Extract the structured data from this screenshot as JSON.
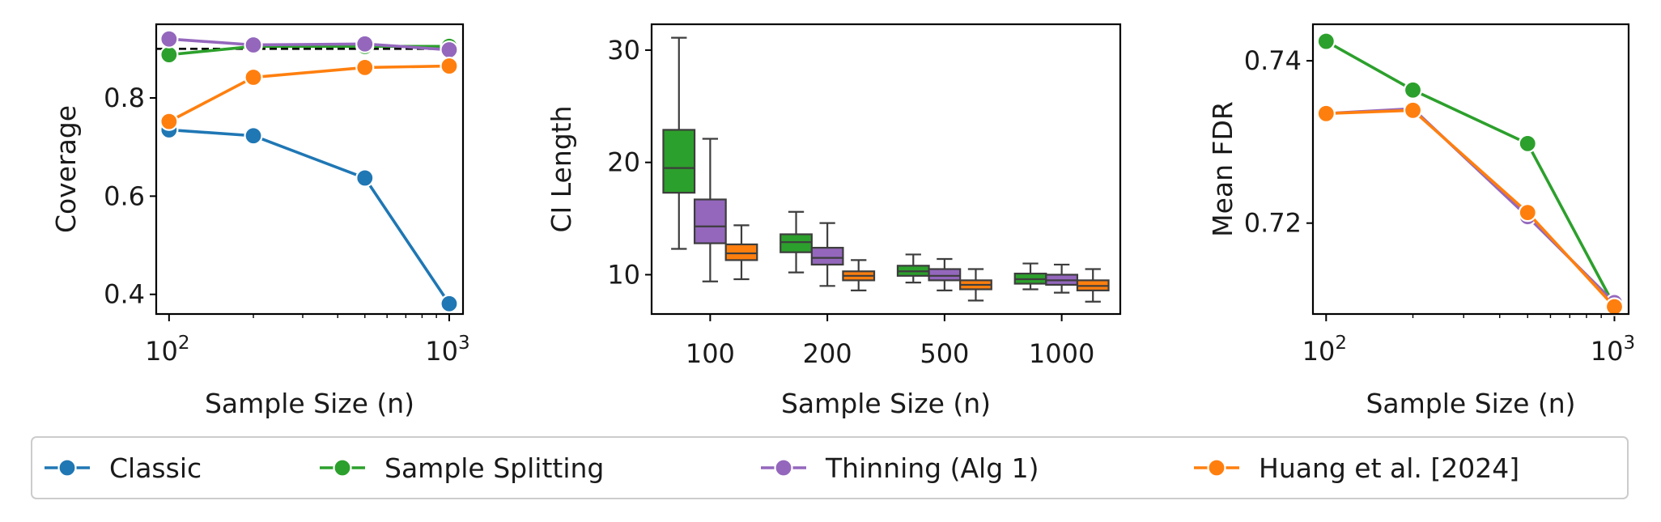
{
  "figure_title": "",
  "legend": {
    "placement": "bottom",
    "entries": [
      {
        "label": "Classic",
        "color": "#1f77b4"
      },
      {
        "label": "Sample Splitting",
        "color": "#2ca02c"
      },
      {
        "label": "Thinning (Alg 1)",
        "color": "#9467bd"
      },
      {
        "label": "Huang et al. [2024]",
        "color": "#ff7f0e"
      }
    ]
  },
  "chart_data": [
    {
      "type": "line",
      "title": "",
      "xlabel": "Sample Size (n)",
      "ylabel": "Coverage",
      "xscale": "log",
      "x": [
        100,
        200,
        500,
        1000
      ],
      "xlim": [
        90,
        1120
      ],
      "xticks": [
        {
          "value": 100,
          "base": "10",
          "exp": "2"
        },
        {
          "value": 1000,
          "base": "10",
          "exp": "3"
        }
      ],
      "ylim": [
        0.36,
        0.95
      ],
      "yticks": [
        {
          "value": 0.4,
          "label": "0.4"
        },
        {
          "value": 0.6,
          "label": "0.6"
        },
        {
          "value": 0.8,
          "label": "0.8"
        }
      ],
      "reference_line": {
        "y": 0.9,
        "style": "dashed",
        "color": "#000000"
      },
      "series": [
        {
          "name": "Classic",
          "color": "#1f77b4",
          "values": [
            0.735,
            0.723,
            0.637,
            0.381
          ]
        },
        {
          "name": "Sample Splitting",
          "color": "#2ca02c",
          "values": [
            0.888,
            0.905,
            0.905,
            0.905
          ]
        },
        {
          "name": "Thinning (Alg 1)",
          "color": "#9467bd",
          "values": [
            0.92,
            0.908,
            0.91,
            0.898
          ]
        },
        {
          "name": "Huang et al. [2024]",
          "color": "#ff7f0e",
          "values": [
            0.752,
            0.842,
            0.862,
            0.865
          ]
        }
      ]
    },
    {
      "type": "box",
      "title": "",
      "xlabel": "Sample Size (n)",
      "ylabel": "CI Length",
      "categories": [
        "100",
        "200",
        "500",
        "1000"
      ],
      "ylim": [
        6.5,
        32.3
      ],
      "yticks": [
        {
          "value": 10,
          "label": "10"
        },
        {
          "value": 20,
          "label": "20"
        },
        {
          "value": 30,
          "label": "30"
        }
      ],
      "series": [
        {
          "name": "Sample Splitting",
          "color": "#2ca02c",
          "boxes": [
            {
              "whislo": 12.3,
              "q1": 17.3,
              "med": 19.5,
              "q3": 22.9,
              "whishi": 31.1
            },
            {
              "whislo": 10.2,
              "q1": 12.0,
              "med": 12.9,
              "q3": 13.6,
              "whishi": 15.6
            },
            {
              "whislo": 9.3,
              "q1": 9.9,
              "med": 10.3,
              "q3": 10.8,
              "whishi": 11.8
            },
            {
              "whislo": 8.7,
              "q1": 9.2,
              "med": 9.6,
              "q3": 10.1,
              "whishi": 11.0
            }
          ]
        },
        {
          "name": "Thinning (Alg 1)",
          "color": "#9467bd",
          "boxes": [
            {
              "whislo": 9.4,
              "q1": 12.8,
              "med": 14.3,
              "q3": 16.7,
              "whishi": 22.1
            },
            {
              "whislo": 9.0,
              "q1": 10.9,
              "med": 11.5,
              "q3": 12.4,
              "whishi": 14.6
            },
            {
              "whislo": 8.6,
              "q1": 9.5,
              "med": 9.9,
              "q3": 10.5,
              "whishi": 11.4
            },
            {
              "whislo": 8.4,
              "q1": 9.1,
              "med": 9.5,
              "q3": 10.0,
              "whishi": 10.9
            }
          ]
        },
        {
          "name": "Huang et al. [2024]",
          "color": "#ff7f0e",
          "boxes": [
            {
              "whislo": 9.6,
              "q1": 11.3,
              "med": 11.9,
              "q3": 12.7,
              "whishi": 14.4
            },
            {
              "whislo": 8.6,
              "q1": 9.5,
              "med": 9.9,
              "q3": 10.3,
              "whishi": 11.3
            },
            {
              "whislo": 7.7,
              "q1": 8.7,
              "med": 9.1,
              "q3": 9.5,
              "whishi": 10.5
            },
            {
              "whislo": 7.6,
              "q1": 8.6,
              "med": 9.0,
              "q3": 9.5,
              "whishi": 10.5
            }
          ]
        }
      ]
    },
    {
      "type": "line",
      "title": "",
      "xlabel": "Sample Size (n)",
      "ylabel": "Mean FDR",
      "xscale": "log",
      "x": [
        100,
        200,
        500,
        1000
      ],
      "xlim": [
        90,
        1120
      ],
      "xticks": [
        {
          "value": 100,
          "base": "10",
          "exp": "2"
        },
        {
          "value": 1000,
          "base": "10",
          "exp": "3"
        }
      ],
      "ylim": [
        0.7088,
        0.7445
      ],
      "yticks": [
        {
          "value": 0.72,
          "label": "0.72"
        },
        {
          "value": 0.74,
          "label": "0.74"
        }
      ],
      "series": [
        {
          "name": "Sample Splitting",
          "color": "#2ca02c",
          "values": [
            0.7424,
            0.7364,
            0.7298,
            0.7098
          ]
        },
        {
          "name": "Thinning (Alg 1)",
          "color": "#9467bd",
          "values": [
            0.7335,
            0.7341,
            0.7208,
            0.7102
          ]
        },
        {
          "name": "Huang et al. [2024]",
          "color": "#ff7f0e",
          "values": [
            0.7335,
            0.7339,
            0.7213,
            0.7097
          ]
        }
      ]
    }
  ]
}
